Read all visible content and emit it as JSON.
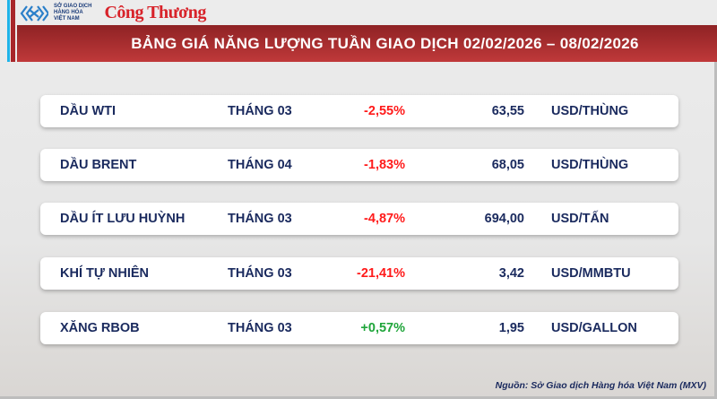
{
  "header": {
    "logo_mxv": "SỞ GIAO DỊCH HÀNG HÓA VIỆT NAM",
    "logo_mxv_lines": [
      "SỞ GIAO DỊCH",
      "HÀNG HÓA",
      "VIỆT NAM"
    ],
    "logo_congthuong": "Công Thương",
    "title": "BẢNG GIÁ NĂNG LƯỢNG TUẦN GIAO DỊCH 02/02/2026 – 08/02/2026"
  },
  "colors": {
    "negative": "#ff1a1a",
    "positive": "#1fa53a",
    "title_bar": "#b03030",
    "text": "#1a2a5e"
  },
  "rows": [
    {
      "name": "DẦU WTI",
      "month": "THÁNG 03",
      "change": "-2,55%",
      "trend": "negative",
      "price": "63,55",
      "unit": "USD/THÙNG"
    },
    {
      "name": "DẦU BRENT",
      "month": "THÁNG 04",
      "change": "-1,83%",
      "trend": "negative",
      "price": "68,05",
      "unit": "USD/THÙNG"
    },
    {
      "name": "DẦU ÍT LƯU HUỲNH",
      "month": "THÁNG 03",
      "change": "-4,87%",
      "trend": "negative",
      "price": "694,00",
      "unit": "USD/TẤN"
    },
    {
      "name": "KHÍ TỰ NHIÊN",
      "month": "THÁNG 03",
      "change": "-21,41%",
      "trend": "negative",
      "price": "3,42",
      "unit": "USD/MMBTU"
    },
    {
      "name": "XĂNG RBOB",
      "month": "THÁNG 03",
      "change": "+0,57%",
      "trend": "positive",
      "price": "1,95",
      "unit": "USD/GALLON"
    }
  ],
  "footer": {
    "source": "Nguồn: Sở Giao dịch Hàng hóa Việt Nam (MXV)"
  }
}
